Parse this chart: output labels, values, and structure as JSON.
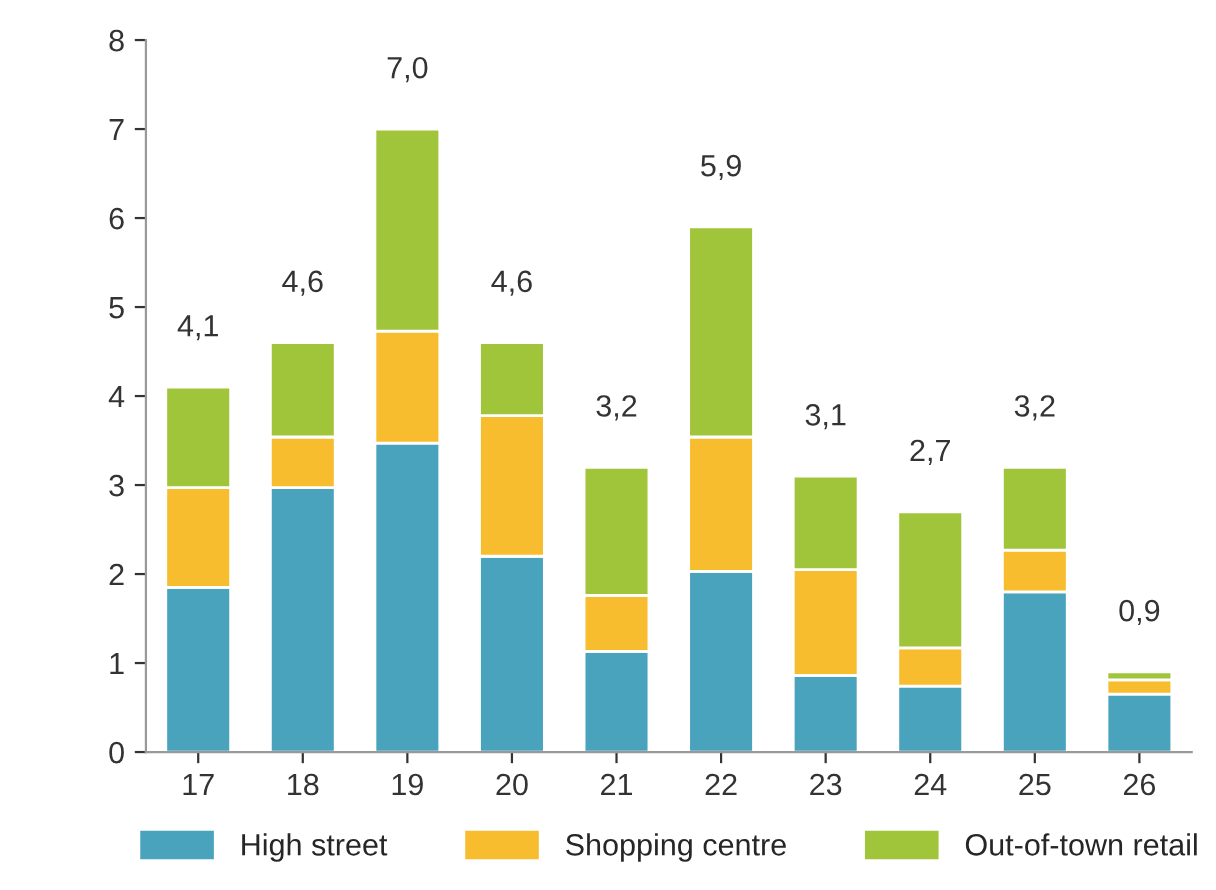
{
  "chart_data": {
    "type": "bar",
    "stacked": true,
    "categories": [
      "17",
      "18",
      "19",
      "20",
      "21",
      "22",
      "23",
      "24",
      "25",
      "26"
    ],
    "series": [
      {
        "name": "High street",
        "color": "#4aa3bd",
        "values": [
          1.85,
          2.97,
          3.47,
          2.2,
          1.13,
          2.03,
          0.86,
          0.74,
          1.8,
          0.65
        ]
      },
      {
        "name": "Shopping centre",
        "color": "#f7bd2e",
        "values": [
          1.12,
          0.57,
          1.26,
          1.58,
          0.63,
          1.51,
          1.19,
          0.43,
          0.47,
          0.16
        ]
      },
      {
        "name": "Out-of-town retail",
        "color": "#a0c43a",
        "values": [
          1.13,
          1.06,
          2.27,
          0.82,
          1.44,
          2.36,
          1.05,
          1.53,
          0.93,
          0.09
        ]
      }
    ],
    "totals": [
      "4,1",
      "4,6",
      "7,0",
      "4,6",
      "3,2",
      "5,9",
      "3,1",
      "2,7",
      "3,2",
      "0,9"
    ],
    "ylim": [
      0,
      8
    ],
    "yticks": [
      0,
      1,
      2,
      3,
      4,
      5,
      6,
      7,
      8
    ],
    "grid": false,
    "legend": "bottom"
  }
}
